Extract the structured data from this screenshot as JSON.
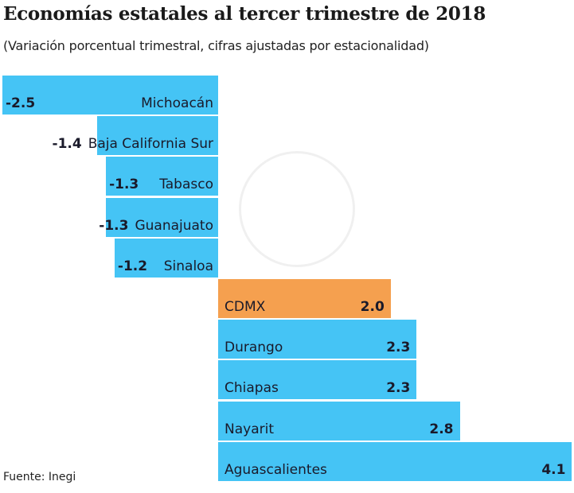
{
  "title": "Economías estatales al tercer trimestre de 2018",
  "subtitle": "(Variación porcentual trimestral, cifras ajustadas por estacionalidad)",
  "source": "Fuente: Inegi",
  "chart_data": {
    "type": "bar",
    "orientation": "horizontal",
    "title": "Economías estatales al tercer trimestre de 2018",
    "subtitle": "(Variación porcentual trimestral, cifras ajustadas por estacionalidad)",
    "categories": [
      "Michoacán",
      "Baja California Sur",
      "Tabasco",
      "Guanajuato",
      "Sinaloa",
      "CDMX",
      "Durango",
      "Chiapas",
      "Nayarit",
      "Aguascalientes"
    ],
    "values": [
      -2.5,
      -1.4,
      -1.3,
      -1.3,
      -1.2,
      2.0,
      2.3,
      2.3,
      2.8,
      4.1
    ],
    "value_labels": [
      "-2.5",
      "-1.4",
      "-1.3",
      "-1.3",
      "-1.2",
      "2.0",
      "2.3",
      "2.3",
      "2.8",
      "4.1"
    ],
    "highlight": "CDMX",
    "colors": {
      "default": "#45c4f5",
      "highlight": "#f5a04f"
    },
    "grid": false
  }
}
